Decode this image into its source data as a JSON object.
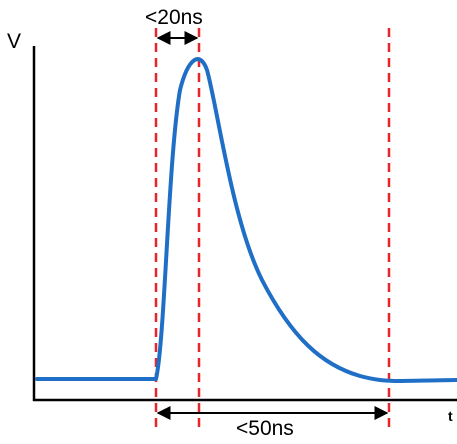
{
  "diagram": {
    "axes": {
      "y_label": "V",
      "x_label": "t"
    },
    "annotations": {
      "rise_time": "<20ns",
      "pulse_duration": "<50ns"
    },
    "colors": {
      "signal": "#1f6fc6",
      "marker": "#e8262a",
      "axis": "#000000"
    }
  }
}
